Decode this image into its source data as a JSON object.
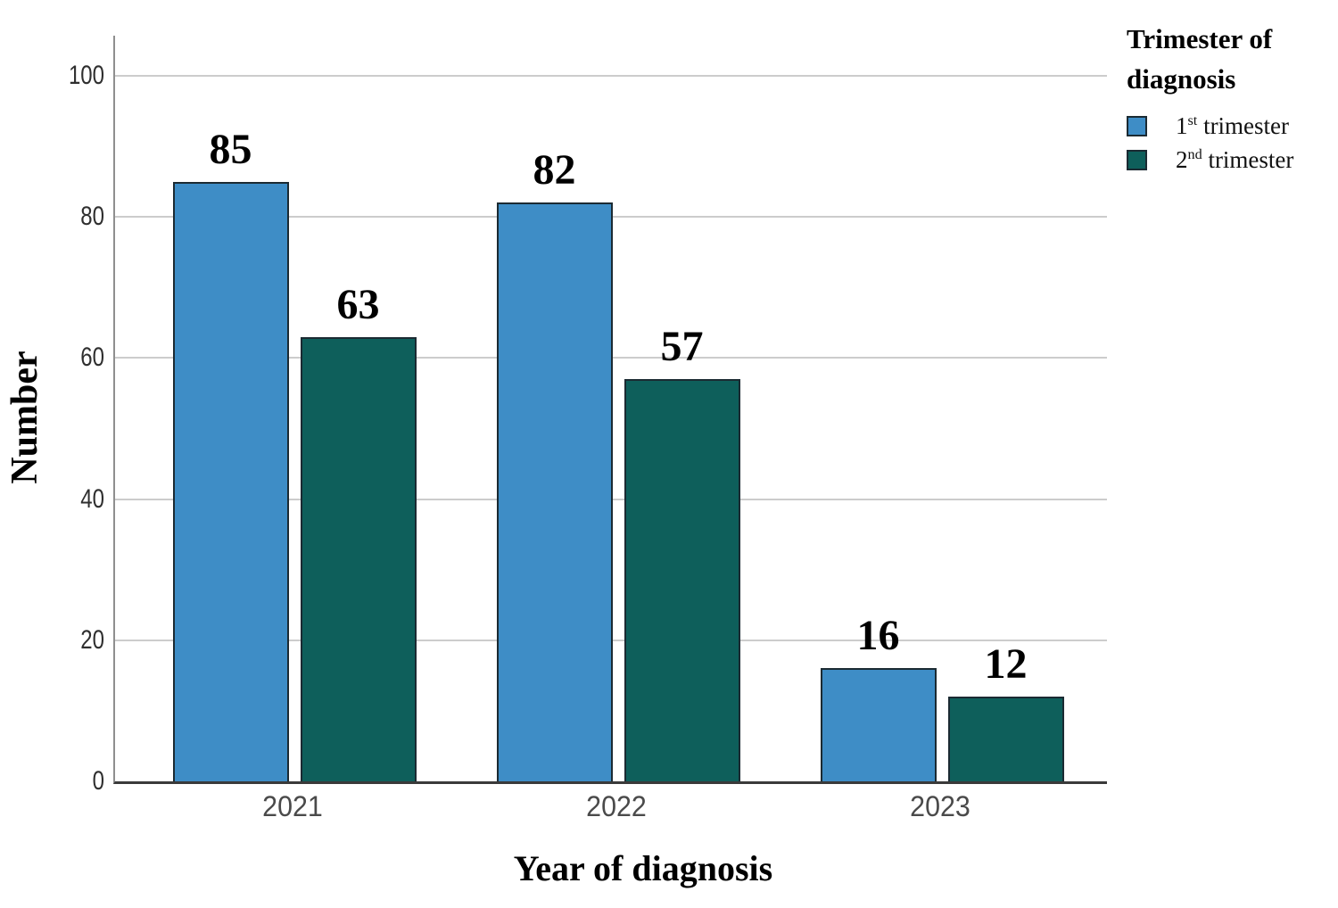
{
  "chart_data": {
    "type": "bar",
    "title": "",
    "categories": [
      "2021",
      "2022",
      "2023"
    ],
    "series": [
      {
        "name": "1st trimester",
        "label_num": "1",
        "label_sup": "st",
        "label_rest": " trimester",
        "color": "#3E8DC6",
        "values": [
          85,
          82,
          16
        ]
      },
      {
        "name": "2nd trimester",
        "label_num": "2",
        "label_sup": "nd",
        "label_rest": " trimester",
        "color": "#0E5F5B",
        "values": [
          63,
          57,
          12
        ]
      }
    ],
    "xlabel": "Year of diagnosis",
    "ylabel": "Number",
    "ylim": [
      0,
      100
    ],
    "yticks": [
      0,
      20,
      40,
      60,
      80,
      100
    ],
    "grid": "horizontal",
    "legend_title": "Trimester of diagnosis",
    "legend_position": "top-right",
    "value_labels": true,
    "bar_border_color": "#1b2a32",
    "gridline_color": "#cccccc",
    "axis_line_color": "#3a3a3a"
  }
}
